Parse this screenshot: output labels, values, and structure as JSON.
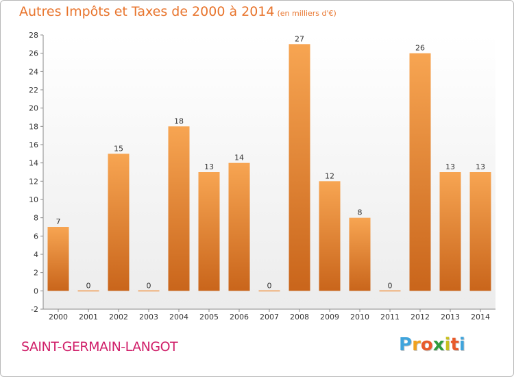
{
  "chart_data": {
    "type": "bar",
    "title": "Autres Impôts et Taxes de 2000 à 2014",
    "subtitle": "(en milliers d'€)",
    "categories": [
      "2000",
      "2001",
      "2002",
      "2003",
      "2004",
      "2005",
      "2006",
      "2007",
      "2008",
      "2009",
      "2010",
      "2011",
      "2012",
      "2013",
      "2014"
    ],
    "values": [
      7,
      0,
      15,
      0,
      18,
      13,
      14,
      0,
      27,
      12,
      8,
      0,
      26,
      13,
      13
    ],
    "ylim": [
      -2,
      28
    ],
    "yticks": [
      -2,
      0,
      2,
      4,
      6,
      8,
      10,
      12,
      14,
      16,
      18,
      20,
      22,
      24,
      26,
      28
    ],
    "xlabel": "",
    "ylabel": "",
    "grid": false,
    "colors": {
      "bar_light": "#f7a552",
      "bar_dark": "#c9651b",
      "zero_bar": "#f0b07a",
      "title": "#e8742c"
    }
  },
  "commune": "SAINT-GERMAIN-LANGOT",
  "logo": {
    "letters": [
      "P",
      "r",
      "o",
      "x",
      "i",
      "t",
      "i"
    ],
    "colors": [
      "#3fa4dc",
      "#f0a11f",
      "#e85a2a",
      "#2f9c3e",
      "#c8c020",
      "#e85a2a",
      "#3fa4dc"
    ]
  }
}
